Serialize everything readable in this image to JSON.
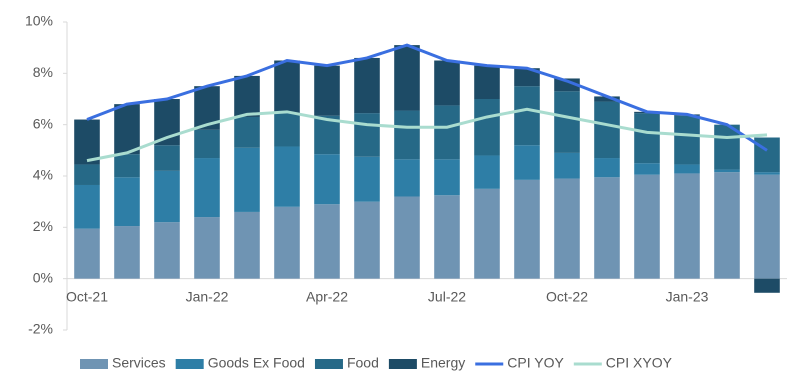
{
  "chart_data": {
    "type": "bar",
    "categories": [
      "Oct-21",
      null,
      null,
      "Jan-22",
      null,
      null,
      "Apr-22",
      null,
      null,
      "Jul-22",
      null,
      null,
      "Oct-22",
      null,
      null,
      "Jan-23",
      null,
      null
    ],
    "series": [
      {
        "name": "Services",
        "type": "bar",
        "color": "#6f94b3",
        "values": [
          1.95,
          2.05,
          2.2,
          2.4,
          2.6,
          2.8,
          2.9,
          3.0,
          3.2,
          3.25,
          3.5,
          3.85,
          3.9,
          3.95,
          4.05,
          4.1,
          4.15,
          4.05
        ]
      },
      {
        "name": "Goods Ex Food",
        "type": "bar",
        "color": "#2e7ea6",
        "values": [
          1.7,
          1.9,
          2.0,
          2.3,
          2.5,
          2.35,
          1.95,
          1.75,
          1.45,
          1.4,
          1.3,
          1.35,
          1.0,
          0.75,
          0.45,
          0.35,
          0.1,
          0.1
        ]
      },
      {
        "name": "Food",
        "type": "bar",
        "color": "#266987",
        "values": [
          0.8,
          0.9,
          1.0,
          1.1,
          1.2,
          1.3,
          1.5,
          1.7,
          1.9,
          2.1,
          2.2,
          2.3,
          2.4,
          2.2,
          1.95,
          1.9,
          1.75,
          1.35
        ]
      },
      {
        "name": "Energy",
        "type": "bar",
        "color": "#1d4b66",
        "values": [
          1.75,
          1.95,
          1.8,
          1.7,
          1.6,
          2.05,
          1.95,
          2.15,
          2.55,
          1.75,
          1.3,
          0.7,
          0.5,
          0.2,
          0.05,
          0.05,
          0.0,
          -0.55
        ]
      },
      {
        "name": "CPI YOY",
        "type": "line",
        "color": "#3a6fe0",
        "values": [
          6.2,
          6.8,
          7.0,
          7.5,
          7.9,
          8.5,
          8.3,
          8.6,
          9.1,
          8.5,
          8.3,
          8.2,
          7.7,
          7.1,
          6.5,
          6.4,
          6.0,
          5.0
        ]
      },
      {
        "name": "CPI XYOY",
        "type": "line",
        "color": "#a9dccf",
        "values": [
          4.6,
          4.9,
          5.5,
          6.0,
          6.4,
          6.5,
          6.2,
          6.0,
          5.9,
          5.9,
          6.3,
          6.6,
          6.3,
          6.0,
          5.7,
          5.6,
          5.5,
          5.6
        ]
      }
    ],
    "ylim": [
      -2,
      10
    ],
    "yticks": [
      {
        "value": -2,
        "label": "-2%"
      },
      {
        "value": 0,
        "label": "0%"
      },
      {
        "value": 2,
        "label": "2%"
      },
      {
        "value": 4,
        "label": "4%"
      },
      {
        "value": 6,
        "label": "6%"
      },
      {
        "value": 8,
        "label": "8%"
      },
      {
        "value": 10,
        "label": "10%"
      }
    ],
    "grid": false,
    "legend": "bottom"
  }
}
